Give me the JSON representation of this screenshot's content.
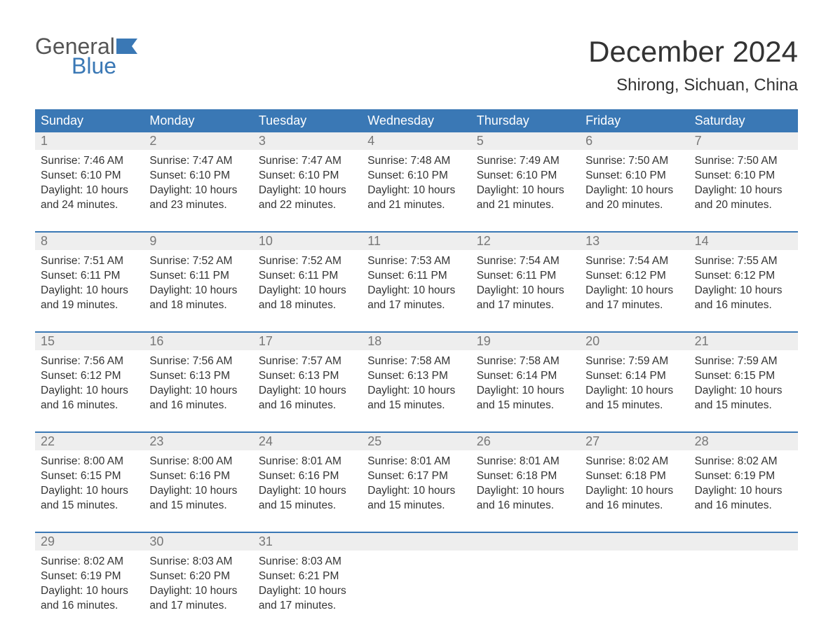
{
  "brand": {
    "part1": "General",
    "part2": "Blue"
  },
  "title": "December 2024",
  "location": "Shirong, Sichuan, China",
  "colors": {
    "header_bg": "#3a78b5",
    "header_text": "#ffffff",
    "daynum_bg": "#eeeeee",
    "daynum_text": "#777777",
    "body_text": "#333333",
    "week_border": "#3a78b5",
    "logo_gray": "#555555",
    "logo_blue": "#3a78b5",
    "page_bg": "#ffffff"
  },
  "day_labels": [
    "Sunday",
    "Monday",
    "Tuesday",
    "Wednesday",
    "Thursday",
    "Friday",
    "Saturday"
  ],
  "weeks": [
    [
      {
        "n": "1",
        "sr": "Sunrise: 7:46 AM",
        "ss": "Sunset: 6:10 PM",
        "d1": "Daylight: 10 hours",
        "d2": "and 24 minutes."
      },
      {
        "n": "2",
        "sr": "Sunrise: 7:47 AM",
        "ss": "Sunset: 6:10 PM",
        "d1": "Daylight: 10 hours",
        "d2": "and 23 minutes."
      },
      {
        "n": "3",
        "sr": "Sunrise: 7:47 AM",
        "ss": "Sunset: 6:10 PM",
        "d1": "Daylight: 10 hours",
        "d2": "and 22 minutes."
      },
      {
        "n": "4",
        "sr": "Sunrise: 7:48 AM",
        "ss": "Sunset: 6:10 PM",
        "d1": "Daylight: 10 hours",
        "d2": "and 21 minutes."
      },
      {
        "n": "5",
        "sr": "Sunrise: 7:49 AM",
        "ss": "Sunset: 6:10 PM",
        "d1": "Daylight: 10 hours",
        "d2": "and 21 minutes."
      },
      {
        "n": "6",
        "sr": "Sunrise: 7:50 AM",
        "ss": "Sunset: 6:10 PM",
        "d1": "Daylight: 10 hours",
        "d2": "and 20 minutes."
      },
      {
        "n": "7",
        "sr": "Sunrise: 7:50 AM",
        "ss": "Sunset: 6:10 PM",
        "d1": "Daylight: 10 hours",
        "d2": "and 20 minutes."
      }
    ],
    [
      {
        "n": "8",
        "sr": "Sunrise: 7:51 AM",
        "ss": "Sunset: 6:11 PM",
        "d1": "Daylight: 10 hours",
        "d2": "and 19 minutes."
      },
      {
        "n": "9",
        "sr": "Sunrise: 7:52 AM",
        "ss": "Sunset: 6:11 PM",
        "d1": "Daylight: 10 hours",
        "d2": "and 18 minutes."
      },
      {
        "n": "10",
        "sr": "Sunrise: 7:52 AM",
        "ss": "Sunset: 6:11 PM",
        "d1": "Daylight: 10 hours",
        "d2": "and 18 minutes."
      },
      {
        "n": "11",
        "sr": "Sunrise: 7:53 AM",
        "ss": "Sunset: 6:11 PM",
        "d1": "Daylight: 10 hours",
        "d2": "and 17 minutes."
      },
      {
        "n": "12",
        "sr": "Sunrise: 7:54 AM",
        "ss": "Sunset: 6:11 PM",
        "d1": "Daylight: 10 hours",
        "d2": "and 17 minutes."
      },
      {
        "n": "13",
        "sr": "Sunrise: 7:54 AM",
        "ss": "Sunset: 6:12 PM",
        "d1": "Daylight: 10 hours",
        "d2": "and 17 minutes."
      },
      {
        "n": "14",
        "sr": "Sunrise: 7:55 AM",
        "ss": "Sunset: 6:12 PM",
        "d1": "Daylight: 10 hours",
        "d2": "and 16 minutes."
      }
    ],
    [
      {
        "n": "15",
        "sr": "Sunrise: 7:56 AM",
        "ss": "Sunset: 6:12 PM",
        "d1": "Daylight: 10 hours",
        "d2": "and 16 minutes."
      },
      {
        "n": "16",
        "sr": "Sunrise: 7:56 AM",
        "ss": "Sunset: 6:13 PM",
        "d1": "Daylight: 10 hours",
        "d2": "and 16 minutes."
      },
      {
        "n": "17",
        "sr": "Sunrise: 7:57 AM",
        "ss": "Sunset: 6:13 PM",
        "d1": "Daylight: 10 hours",
        "d2": "and 16 minutes."
      },
      {
        "n": "18",
        "sr": "Sunrise: 7:58 AM",
        "ss": "Sunset: 6:13 PM",
        "d1": "Daylight: 10 hours",
        "d2": "and 15 minutes."
      },
      {
        "n": "19",
        "sr": "Sunrise: 7:58 AM",
        "ss": "Sunset: 6:14 PM",
        "d1": "Daylight: 10 hours",
        "d2": "and 15 minutes."
      },
      {
        "n": "20",
        "sr": "Sunrise: 7:59 AM",
        "ss": "Sunset: 6:14 PM",
        "d1": "Daylight: 10 hours",
        "d2": "and 15 minutes."
      },
      {
        "n": "21",
        "sr": "Sunrise: 7:59 AM",
        "ss": "Sunset: 6:15 PM",
        "d1": "Daylight: 10 hours",
        "d2": "and 15 minutes."
      }
    ],
    [
      {
        "n": "22",
        "sr": "Sunrise: 8:00 AM",
        "ss": "Sunset: 6:15 PM",
        "d1": "Daylight: 10 hours",
        "d2": "and 15 minutes."
      },
      {
        "n": "23",
        "sr": "Sunrise: 8:00 AM",
        "ss": "Sunset: 6:16 PM",
        "d1": "Daylight: 10 hours",
        "d2": "and 15 minutes."
      },
      {
        "n": "24",
        "sr": "Sunrise: 8:01 AM",
        "ss": "Sunset: 6:16 PM",
        "d1": "Daylight: 10 hours",
        "d2": "and 15 minutes."
      },
      {
        "n": "25",
        "sr": "Sunrise: 8:01 AM",
        "ss": "Sunset: 6:17 PM",
        "d1": "Daylight: 10 hours",
        "d2": "and 15 minutes."
      },
      {
        "n": "26",
        "sr": "Sunrise: 8:01 AM",
        "ss": "Sunset: 6:18 PM",
        "d1": "Daylight: 10 hours",
        "d2": "and 16 minutes."
      },
      {
        "n": "27",
        "sr": "Sunrise: 8:02 AM",
        "ss": "Sunset: 6:18 PM",
        "d1": "Daylight: 10 hours",
        "d2": "and 16 minutes."
      },
      {
        "n": "28",
        "sr": "Sunrise: 8:02 AM",
        "ss": "Sunset: 6:19 PM",
        "d1": "Daylight: 10 hours",
        "d2": "and 16 minutes."
      }
    ],
    [
      {
        "n": "29",
        "sr": "Sunrise: 8:02 AM",
        "ss": "Sunset: 6:19 PM",
        "d1": "Daylight: 10 hours",
        "d2": "and 16 minutes."
      },
      {
        "n": "30",
        "sr": "Sunrise: 8:03 AM",
        "ss": "Sunset: 6:20 PM",
        "d1": "Daylight: 10 hours",
        "d2": "and 17 minutes."
      },
      {
        "n": "31",
        "sr": "Sunrise: 8:03 AM",
        "ss": "Sunset: 6:21 PM",
        "d1": "Daylight: 10 hours",
        "d2": "and 17 minutes."
      },
      {
        "n": "",
        "sr": "",
        "ss": "",
        "d1": "",
        "d2": ""
      },
      {
        "n": "",
        "sr": "",
        "ss": "",
        "d1": "",
        "d2": ""
      },
      {
        "n": "",
        "sr": "",
        "ss": "",
        "d1": "",
        "d2": ""
      },
      {
        "n": "",
        "sr": "",
        "ss": "",
        "d1": "",
        "d2": ""
      }
    ]
  ]
}
